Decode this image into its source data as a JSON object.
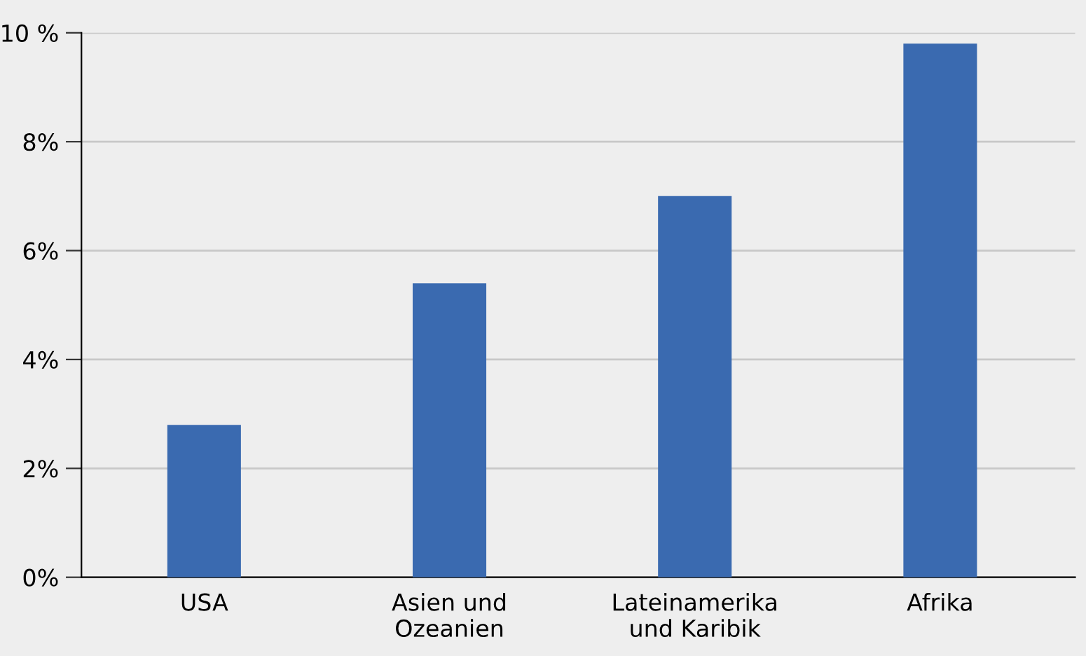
{
  "chart_data": {
    "type": "bar",
    "categories": [
      "USA",
      "Asien und\nOzeanien",
      "Lateinamerika\nund Karibik",
      "Afrika"
    ],
    "values": [
      2.8,
      5.4,
      7.0,
      9.8
    ],
    "color": "#3a6ab0",
    "ylim": [
      0,
      10
    ],
    "yticks": [
      {
        "value": 0,
        "label": "0%"
      },
      {
        "value": 2,
        "label": "2%"
      },
      {
        "value": 4,
        "label": "4%"
      },
      {
        "value": 6,
        "label": "6%"
      },
      {
        "value": 8,
        "label": "8%"
      },
      {
        "value": 10,
        "label": "10 %"
      }
    ],
    "grid": "y",
    "legend": false
  }
}
